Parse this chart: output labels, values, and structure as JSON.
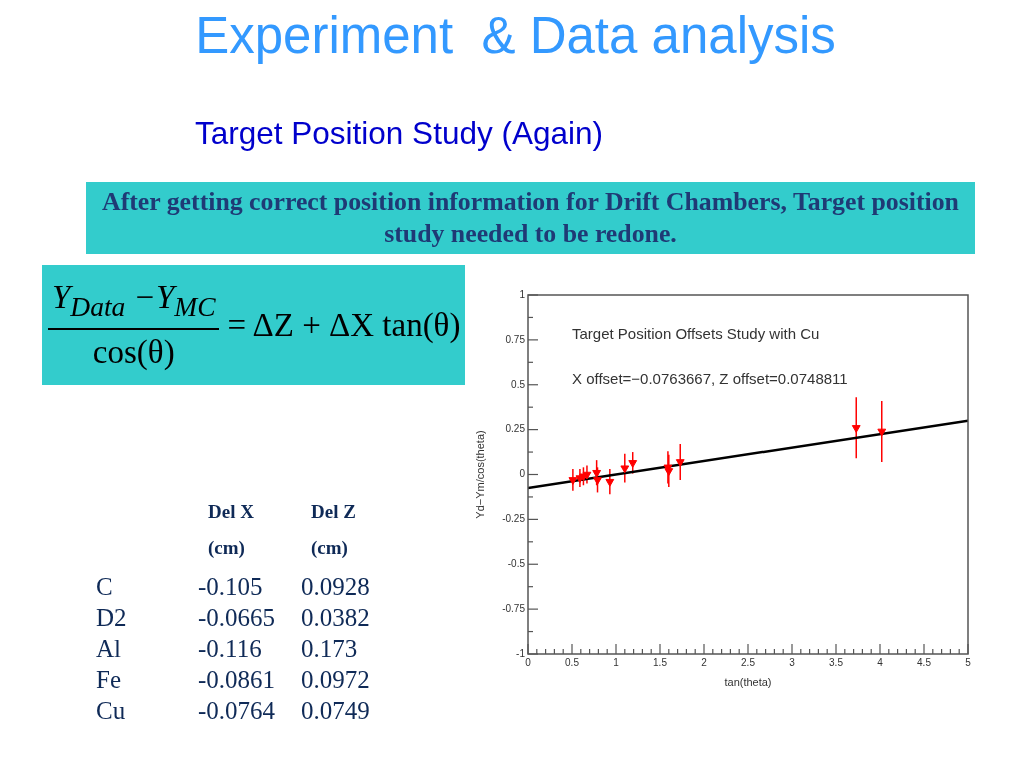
{
  "chart_data": [
    {
      "type": "other",
      "title": "Experiment  & Data analysis",
      "subtitle": "Target Position Study (Again)",
      "annotations": [
        "After getting correct position information for Drift Chambers, Target position study needed to be redone."
      ]
    },
    {
      "type": "other",
      "annotations": [
        "Y$_{Data}$ −Y$_{MC}$",
        "cos(θ)",
        "= ΔZ + ΔX tan(θ)"
      ]
    },
    {
      "type": "scatter",
      "title": "Target Position Offsets Study with Cu",
      "subtitle": "X offset=−0.0763667, Z offset=0.0748811",
      "xlabel": "tan(theta)",
      "ylabel": "Yd−Ym/cos(theta)",
      "xlim": [
        0,
        5
      ],
      "ylim": [
        -1,
        1
      ],
      "xticks": [
        0,
        {
          "value": 0.1,
          "label": null
        },
        {
          "value": 0.2,
          "label": null
        },
        {
          "value": 0.3,
          "label": null
        },
        {
          "value": 0.4,
          "label": null
        },
        0.5,
        {
          "value": 0.6,
          "label": null
        },
        {
          "value": 0.7,
          "label": null
        },
        {
          "value": 0.8,
          "label": null
        },
        {
          "value": 0.9,
          "label": null
        },
        1,
        {
          "value": 1.1,
          "label": null
        },
        {
          "value": 1.2,
          "label": null
        },
        {
          "value": 1.3,
          "label": null
        },
        {
          "value": 1.4,
          "label": null
        },
        1.5,
        {
          "value": 1.6,
          "label": null
        },
        {
          "value": 1.7,
          "label": null
        },
        {
          "value": 1.8,
          "label": null
        },
        {
          "value": 1.9,
          "label": null
        },
        2,
        {
          "value": 2.1,
          "label": null
        },
        {
          "value": 2.2,
          "label": null
        },
        {
          "value": 2.3,
          "label": null
        },
        {
          "value": 2.4,
          "label": null
        },
        2.5,
        {
          "value": 2.6,
          "label": null
        },
        {
          "value": 2.7,
          "label": null
        },
        {
          "value": 2.8,
          "label": null
        },
        {
          "value": 2.9,
          "label": null
        },
        3,
        {
          "value": 3.1,
          "label": null
        },
        {
          "value": 3.2,
          "label": null
        },
        {
          "value": 3.3,
          "label": null
        },
        {
          "value": 3.4,
          "label": null
        },
        3.5,
        {
          "value": 3.6,
          "label": null
        },
        {
          "value": 3.7,
          "label": null
        },
        {
          "value": 3.8,
          "label": null
        },
        {
          "value": 3.9,
          "label": null
        },
        4,
        {
          "value": 4.1,
          "label": null
        },
        {
          "value": 4.2,
          "label": null
        },
        {
          "value": 4.3,
          "label": null
        },
        {
          "value": 4.4,
          "label": null
        },
        4.5,
        {
          "value": 4.6,
          "label": null
        },
        {
          "value": 4.7,
          "label": null
        },
        {
          "value": 4.8,
          "label": null
        },
        {
          "value": 4.9,
          "label": null
        },
        5
      ],
      "yticks": [
        -1,
        {
          "value": -0.875,
          "label": null
        },
        -0.75,
        {
          "value": -0.625,
          "label": null
        },
        -0.5,
        {
          "value": -0.375,
          "label": null
        },
        -0.25,
        {
          "value": -0.125,
          "label": null
        },
        0,
        {
          "value": 0.125,
          "label": null
        },
        0.25,
        {
          "value": 0.375,
          "label": null
        },
        0.5,
        {
          "value": 0.625,
          "label": null
        },
        0.75,
        {
          "value": 0.875,
          "label": null
        },
        1
      ],
      "marker": "triangle",
      "series": [
        {
          "color": "#ff0000",
          "x": [
            0.51,
            0.59,
            0.63,
            0.67,
            0.78,
            0.79,
            0.93,
            1.1,
            1.19,
            1.59,
            1.6,
            1.73,
            3.73,
            4.02
          ],
          "values": [
            -0.03,
            -0.02,
            -0.01,
            0.0,
            0.01,
            -0.03,
            -0.04,
            0.035,
            0.065,
            0.04,
            0.02,
            0.07,
            0.26,
            0.24
          ],
          "errors": [
            0.06,
            0.05,
            0.05,
            0.05,
            0.07,
            0.07,
            0.07,
            0.08,
            0.06,
            0.09,
            0.09,
            0.1,
            0.17,
            0.17
          ]
        },
        {
          "type": "line",
          "color": "#000000",
          "marker": "none",
          "x": [
            0,
            5
          ],
          "values": [
            -0.075,
            0.3
          ]
        }
      ]
    },
    {
      "type": "other",
      "categories": [
        "C",
        "D2",
        "Al",
        "Fe",
        "Cu"
      ],
      "series": [
        {
          "name": "Del X (cm)",
          "color": "#0f2a57",
          "values": [
            -0.105,
            -0.0665,
            -0.116,
            -0.0861,
            -0.0764
          ]
        },
        {
          "name": "Del Z (cm)",
          "color": "#0f2a57",
          "values": [
            0.0928,
            0.0382,
            0.173,
            0.0972,
            0.0749
          ]
        }
      ],
      "data_labels": true
    }
  ]
}
